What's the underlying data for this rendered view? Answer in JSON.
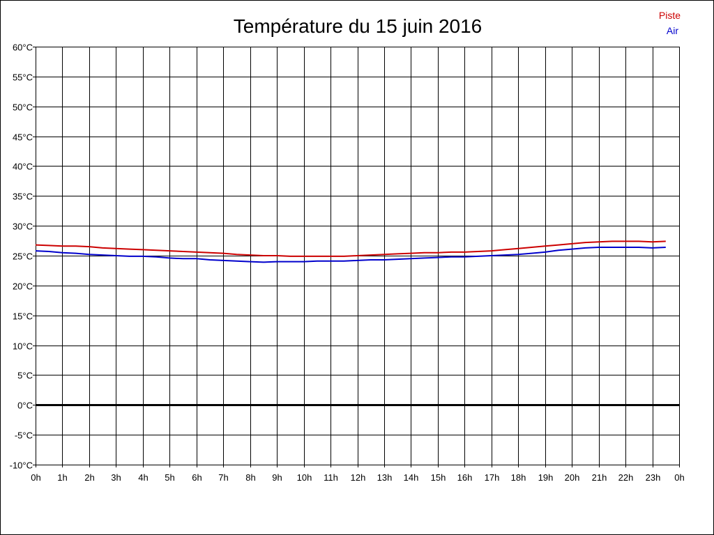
{
  "chart_data": {
    "type": "line",
    "title": "Température du 15 juin 2016",
    "xlabel": "",
    "ylabel": "",
    "x_tick_labels": [
      "0h",
      "1h",
      "2h",
      "3h",
      "4h",
      "5h",
      "6h",
      "7h",
      "8h",
      "9h",
      "10h",
      "11h",
      "12h",
      "13h",
      "14h",
      "15h",
      "16h",
      "17h",
      "18h",
      "19h",
      "20h",
      "21h",
      "22h",
      "23h",
      "0h"
    ],
    "y_tick_labels": [
      "60°C",
      "55°C",
      "50°C",
      "45°C",
      "40°C",
      "35°C",
      "30°C",
      "25°C",
      "20°C",
      "15°C",
      "10°C",
      "5°C",
      "0°C",
      "-5°C",
      "-10°C"
    ],
    "xlim": [
      0,
      24
    ],
    "ylim": [
      -10,
      60
    ],
    "grid": true,
    "zero_line": true,
    "legend_position": "top-right",
    "series": [
      {
        "name": "Piste",
        "color": "#cc0000",
        "x": [
          0,
          0.5,
          1,
          1.5,
          2,
          2.5,
          3,
          3.5,
          4,
          4.5,
          5,
          5.5,
          6,
          6.5,
          7,
          7.5,
          8,
          8.5,
          9,
          9.5,
          10,
          10.5,
          11,
          11.5,
          12,
          12.5,
          13,
          13.5,
          14,
          14.5,
          15,
          15.5,
          16,
          16.5,
          17,
          17.5,
          18,
          18.5,
          19,
          19.5,
          20,
          20.5,
          21,
          21.5,
          22,
          22.5,
          23,
          23.5
        ],
        "values": [
          26.8,
          26.7,
          26.6,
          26.6,
          26.5,
          26.3,
          26.2,
          26.1,
          26.0,
          25.9,
          25.8,
          25.7,
          25.6,
          25.5,
          25.4,
          25.2,
          25.1,
          25.0,
          25.0,
          24.9,
          24.9,
          24.9,
          24.9,
          24.9,
          25.0,
          25.1,
          25.2,
          25.3,
          25.4,
          25.5,
          25.5,
          25.6,
          25.6,
          25.7,
          25.8,
          26.0,
          26.2,
          26.4,
          26.6,
          26.8,
          27.0,
          27.2,
          27.3,
          27.4,
          27.4,
          27.4,
          27.3,
          27.4
        ]
      },
      {
        "name": "Air",
        "color": "#0000cc",
        "x": [
          0,
          0.5,
          1,
          1.5,
          2,
          2.5,
          3,
          3.5,
          4,
          4.5,
          5,
          5.5,
          6,
          6.5,
          7,
          7.5,
          8,
          8.5,
          9,
          9.5,
          10,
          10.5,
          11,
          11.5,
          12,
          12.5,
          13,
          13.5,
          14,
          14.5,
          15,
          15.5,
          16,
          16.5,
          17,
          17.5,
          18,
          18.5,
          19,
          19.5,
          20,
          20.5,
          21,
          21.5,
          22,
          22.5,
          23,
          23.5
        ],
        "values": [
          25.8,
          25.7,
          25.5,
          25.4,
          25.2,
          25.1,
          25.0,
          24.9,
          24.9,
          24.8,
          24.6,
          24.5,
          24.5,
          24.3,
          24.2,
          24.1,
          24.0,
          23.9,
          24.0,
          24.0,
          24.0,
          24.1,
          24.1,
          24.1,
          24.2,
          24.3,
          24.3,
          24.4,
          24.5,
          24.6,
          24.7,
          24.8,
          24.8,
          24.9,
          25.0,
          25.1,
          25.2,
          25.4,
          25.6,
          25.9,
          26.1,
          26.3,
          26.4,
          26.4,
          26.4,
          26.4,
          26.3,
          26.4
        ]
      }
    ]
  },
  "legend": {
    "items": [
      {
        "label": "Piste",
        "color": "#cc0000"
      },
      {
        "label": "Air",
        "color": "#0000cc"
      }
    ]
  }
}
